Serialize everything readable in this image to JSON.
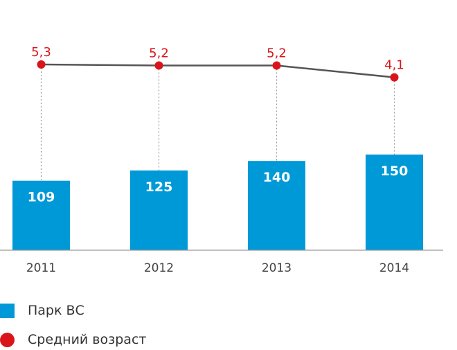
{
  "colors": {
    "bar": "#0099d8",
    "line": "#555555",
    "marker": "#d9151b",
    "dotted": "#999999",
    "axis": "#999999"
  },
  "chart_data": {
    "type": "bar",
    "categories": [
      "2011",
      "2012",
      "2013",
      "2014"
    ],
    "series": [
      {
        "name": "Парк ВС",
        "type": "bar",
        "values": [
          109,
          125,
          140,
          150
        ]
      },
      {
        "name": "Средний возраст",
        "type": "line",
        "values": [
          5.3,
          5.2,
          5.2,
          4.1
        ],
        "labels": [
          "5,3",
          "5,2",
          "5,2",
          "4,1"
        ]
      }
    ],
    "grid": false,
    "legend": "bottom-left"
  },
  "legend": {
    "items": [
      {
        "label": "Парк ВС",
        "shape": "square"
      },
      {
        "label": "Средний возраст",
        "shape": "circle"
      }
    ]
  }
}
